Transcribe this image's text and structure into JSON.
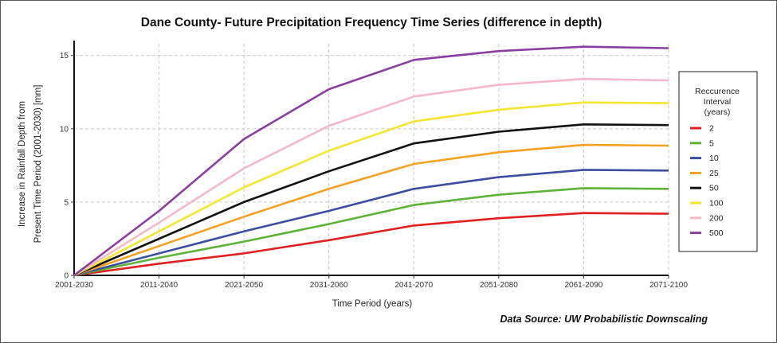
{
  "chart_data": {
    "type": "line",
    "title": "Dane County- Future Precipitation Frequency Time Series (difference in depth)",
    "xlabel": "Time Period (years)",
    "ylabel_lines": [
      "Increase in Rainfall Depth from",
      "Present Time Period (2001-2030) [mm]"
    ],
    "categories": [
      "2001-2030",
      "2011-2040",
      "2021-2050",
      "2031-2060",
      "2041-2070",
      "2051-2080",
      "2061-2090",
      "2071-2100"
    ],
    "ylim": [
      0,
      15.8
    ],
    "yticks": [
      0,
      5,
      10,
      15
    ],
    "grid": true,
    "legend": {
      "title_lines": [
        "Reccurence",
        "Interval",
        "(years)"
      ],
      "placement": "right"
    },
    "series": [
      {
        "name": "2",
        "color": "#e02020",
        "values": [
          0,
          0.8,
          1.5,
          2.4,
          3.4,
          3.9,
          4.25,
          4.2
        ]
      },
      {
        "name": "5",
        "color": "#5cb335",
        "values": [
          0,
          1.2,
          2.3,
          3.5,
          4.8,
          5.5,
          5.95,
          5.9
        ]
      },
      {
        "name": "10",
        "color": "#3c4ea0",
        "values": [
          0,
          1.5,
          3.0,
          4.4,
          5.9,
          6.7,
          7.2,
          7.15
        ]
      },
      {
        "name": "25",
        "color": "#f5a020",
        "values": [
          0,
          2.0,
          4.0,
          5.9,
          7.6,
          8.4,
          8.9,
          8.85
        ]
      },
      {
        "name": "50",
        "color": "#111111",
        "values": [
          0,
          2.5,
          5.0,
          7.1,
          9.0,
          9.8,
          10.3,
          10.25
        ]
      },
      {
        "name": "100",
        "color": "#f2e630",
        "values": [
          0,
          3.0,
          6.0,
          8.5,
          10.5,
          11.3,
          11.8,
          11.75
        ]
      },
      {
        "name": "200",
        "color": "#f4b8c8",
        "values": [
          0,
          3.6,
          7.3,
          10.2,
          12.2,
          13.0,
          13.4,
          13.3
        ]
      },
      {
        "name": "500",
        "color": "#8a3fa0",
        "values": [
          0,
          4.4,
          9.3,
          12.7,
          14.7,
          15.3,
          15.6,
          15.5
        ]
      }
    ]
  },
  "source_note": "Data Source: UW Probabilistic Downscaling"
}
